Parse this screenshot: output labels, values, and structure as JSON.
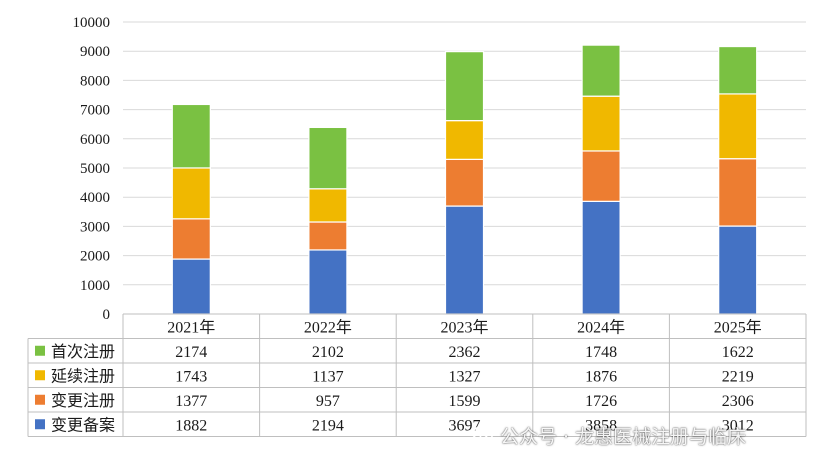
{
  "chart_data": {
    "type": "bar",
    "stacked": true,
    "categories": [
      "2021年",
      "2022年",
      "2023年",
      "2024年",
      "2025年"
    ],
    "series": [
      {
        "name": "变更备案",
        "color": "#4472C4",
        "values": [
          1882,
          2194,
          3697,
          3858,
          3012
        ]
      },
      {
        "name": "变更注册",
        "color": "#ED7D31",
        "values": [
          1377,
          957,
          1599,
          1726,
          2306
        ]
      },
      {
        "name": "延续注册",
        "color": "#F0B800",
        "values": [
          1743,
          1137,
          1327,
          1876,
          2219
        ]
      },
      {
        "name": "首次注册",
        "color": "#7AC142",
        "values": [
          2174,
          2102,
          2362,
          1748,
          1622
        ]
      }
    ],
    "ylim": [
      0,
      10000
    ],
    "yticks": [
      0,
      1000,
      2000,
      3000,
      4000,
      5000,
      6000,
      7000,
      8000,
      9000,
      10000
    ],
    "grid": true,
    "legend": "data-table"
  },
  "watermark": {
    "text": "公众号 · 龙惠医械注册与临床"
  }
}
